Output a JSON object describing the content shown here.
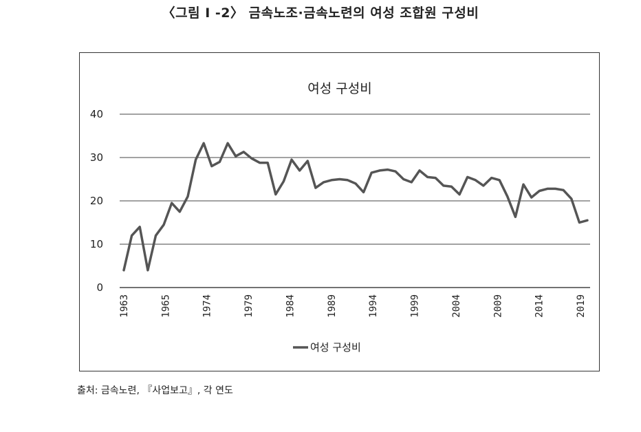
{
  "figure": {
    "caption": "〈그림 Ⅰ -2〉 금속노조·금속노련의 여성 조합원 구성비",
    "source": "출처: 금속노련, 『사업보고』, 각 연도"
  },
  "chart_data": {
    "type": "line",
    "title": "여성 구성비",
    "xlabel": "",
    "ylabel": "",
    "ylim": [
      0,
      40
    ],
    "y_ticks": [
      0,
      10,
      20,
      30,
      40
    ],
    "x_tick_labels": [
      "1963",
      "1965",
      "1974",
      "1979",
      "1984",
      "1989",
      "1994",
      "1999",
      "2004",
      "2009",
      "2014",
      "2019"
    ],
    "grid": true,
    "legend_position": "bottom",
    "series": [
      {
        "name": "여성 구성비",
        "color": "#555555",
        "values": [
          4,
          12,
          14,
          4,
          12,
          14.5,
          19.5,
          17.5,
          21,
          29.5,
          33.3,
          28,
          29,
          33.3,
          30.3,
          31.3,
          29.8,
          28.8,
          28.8,
          21.5,
          24.5,
          29.5,
          27,
          29.2,
          23,
          24.3,
          24.8,
          25,
          24.8,
          24,
          22,
          26.5,
          27,
          27.2,
          26.8,
          25,
          24.3,
          27,
          25.5,
          25.3,
          23.5,
          23.3,
          21.5,
          25.5,
          24.8,
          23.5,
          25.3,
          24.8,
          21,
          16.3,
          23.8,
          20.8,
          22.3,
          22.8,
          22.8,
          22.5,
          20.5,
          15,
          15.5
        ]
      }
    ]
  }
}
